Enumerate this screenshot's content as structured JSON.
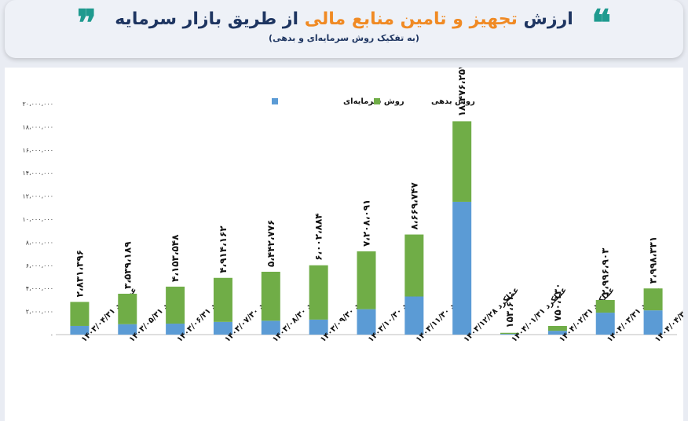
{
  "header": {
    "title_part1": "ارزش",
    "title_accent": "تجهیز و تامین منابع مالی",
    "title_part2": "از طریق بازار سرمایه",
    "subtitle": "(به تفکیک روش سرمایه‌ای و بدهی)",
    "quote_left": "❞",
    "quote_right": "❝"
  },
  "colors": {
    "equity": "#5b9bd5",
    "debt": "#70ad47",
    "title": "#1e3561",
    "accent": "#f08a24",
    "quote": "#1f9a8f"
  },
  "chart_data": {
    "type": "bar",
    "stacked": true,
    "categories": [
      "عملکرد ۱۴۰۳/۰۴/۳۱",
      "عملکرد ۱۴۰۳/۰۵/۳۱",
      "عملکرد ۱۴۰۳/۰۶/۳۱",
      "عملکرد ۱۴۰۳/۰۷/۳۰",
      "عملکرد ۱۴۰۳/۰۸/۳۰",
      "عملکرد ۱۴۰۳/۰۹/۳۰",
      "عملکرد ۱۴۰۳/۱۰/۳۰",
      "عملکرد ۱۴۰۳/۱۱/۳۰",
      "عملکرد ۱۴۰۳/۱۲/۲۸",
      "عملکرد ۱۴۰۴/۰۱/۳۱",
      "عملکرد ۱۴۰۴/۰۲/۳۱",
      "عملکرد ۱۴۰۴/۰۳/۳۱",
      "عملکرد ۱۴۰۴/۰۴/۳۱"
    ],
    "series": [
      {
        "name": "روش سرمایه‌ای",
        "values": [
          750000,
          900000,
          950000,
          1100000,
          1200000,
          1300000,
          2200000,
          3300000,
          11500000,
          60000,
          330000,
          1900000,
          2100000
        ]
      },
      {
        "name": "روش بدهی",
        "values": [
          2081396,
          2639189,
          3203548,
          3814162,
          4242776,
          4702884,
          5008091,
          5369747,
          6976257,
          93610,
          420130,
          1096903,
          1898331
        ]
      }
    ],
    "totals": [
      2831396,
      3539189,
      4153548,
      4914162,
      5442776,
      6002884,
      7208091,
      8669747,
      18476257,
      153610,
      750130,
      2996903,
      3998331
    ],
    "total_labels": [
      "۲،۸۳۱،۳۹۶",
      "۳،۵۳۹،۱۸۹",
      "۴،۱۵۳،۵۴۸",
      "۴،۹۱۴،۱۶۲",
      "۵،۴۴۲،۷۷۶",
      "۶،۰۰۲،۸۸۴",
      "۷،۲۰۸،۰۹۱",
      "۸،۶۶۹،۷۴۷",
      "۱۸،۴۷۶،۲۵۷",
      "۱۵۳،۶۱۰",
      "۷۵۰،۱۳۰",
      "۲،۹۹۶،۹۰۳",
      "۳،۹۹۸،۳۳۱"
    ],
    "y_ticks": [
      0,
      2000000,
      4000000,
      6000000,
      8000000,
      10000000,
      12000000,
      14000000,
      16000000,
      18000000,
      20000000
    ],
    "y_tick_labels": [
      "۰",
      "۲،۰۰۰،۰۰۰",
      "۴،۰۰۰،۰۰۰",
      "۶،۰۰۰،۰۰۰",
      "۸،۰۰۰،۰۰۰",
      "۱۰،۰۰۰،۰۰۰",
      "۱۲،۰۰۰،۰۰۰",
      "۱۴،۰۰۰،۰۰۰",
      "۱۶،۰۰۰،۰۰۰",
      "۱۸،۰۰۰،۰۰۰",
      "۲۰،۰۰۰،۰۰۰"
    ],
    "ylim": [
      0,
      20000000
    ],
    "grid": false,
    "legend_position": "top-center"
  }
}
